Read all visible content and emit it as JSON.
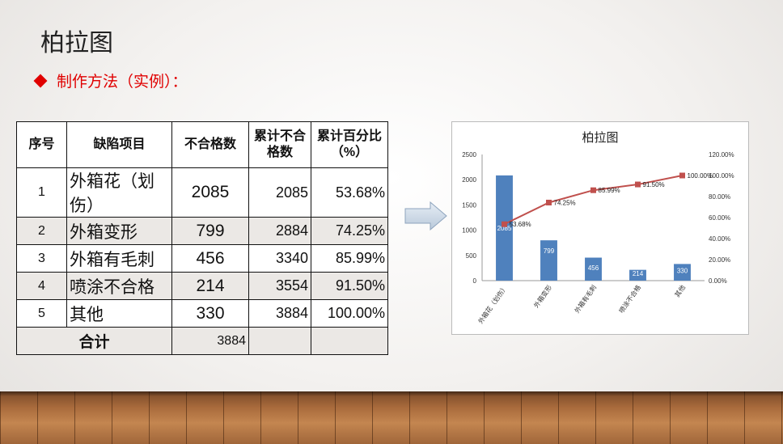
{
  "slide": {
    "title": "柏拉图",
    "subtitle": "制作方法（实例）："
  },
  "table": {
    "headers": [
      "序号",
      "缺陷项目",
      "不合格数",
      "累计不合格数",
      "累计百分比（%）"
    ],
    "rows": [
      {
        "no": "1",
        "item": "外箱花（划伤）",
        "count": "2085",
        "cum": "2085",
        "pct": "53.68%"
      },
      {
        "no": "2",
        "item": "外箱变形",
        "count": "799",
        "cum": "2884",
        "pct": "74.25%"
      },
      {
        "no": "3",
        "item": "外箱有毛刺",
        "count": "456",
        "cum": "3340",
        "pct": "85.99%"
      },
      {
        "no": "4",
        "item": "喷涂不合格",
        "count": "214",
        "cum": "3554",
        "pct": "91.50%"
      },
      {
        "no": "5",
        "item": "其他",
        "count": "330",
        "cum": "3884",
        "pct": "100.00%"
      }
    ],
    "total_label": "合计",
    "total_value": "3884"
  },
  "colors": {
    "accent": "#e00000",
    "bar": "#4f81bd",
    "line": "#c0504d"
  },
  "chart_data": {
    "type": "bar",
    "title": "柏拉图",
    "categories": [
      "外箱花（划伤）",
      "外箱变形",
      "外箱有毛刺",
      "喷涂不合格",
      "其他"
    ],
    "series": [
      {
        "type": "bar",
        "values": [
          2085,
          799,
          456,
          214,
          330
        ],
        "labels": [
          "2085",
          "799",
          "456",
          "214",
          "330"
        ]
      },
      {
        "type": "line",
        "axis": "right",
        "values": [
          53.68,
          74.25,
          85.99,
          91.5,
          100.0
        ],
        "labels": [
          "53.68%",
          "74.25%",
          "85.99%",
          "91.50%",
          "100.00%"
        ]
      }
    ],
    "ylim": [
      0,
      2500
    ],
    "yticks": [
      "0",
      "500",
      "1000",
      "1500",
      "2000",
      "2500"
    ],
    "y2lim": [
      0,
      120
    ],
    "y2ticks": [
      "0.00%",
      "20.00%",
      "40.00%",
      "60.00%",
      "80.00%",
      "100.00%",
      "120.00%"
    ],
    "grid": false,
    "legend": "none"
  }
}
